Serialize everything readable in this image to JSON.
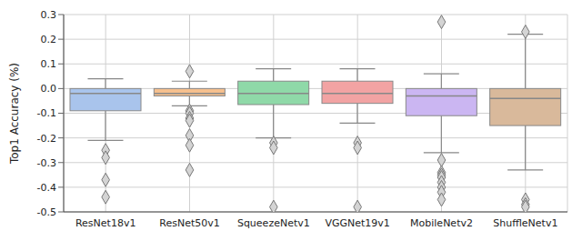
{
  "chart_data": {
    "type": "box",
    "y_label": "Top1 Accuracy (%)",
    "categories": [
      "ResNet18v1",
      "ResNet50v1",
      "SqueezeNetv1",
      "VGGNet19v1",
      "MobileNetv2",
      "ShuffleNetv1"
    ],
    "colors": [
      "#a9c4ec",
      "#f6c08e",
      "#8fd9a8",
      "#f2a3a3",
      "#cbb6f2",
      "#d9b99b"
    ],
    "whisker_low": [
      -0.21,
      -0.07,
      -0.2,
      -0.14,
      -0.26,
      -0.33
    ],
    "q1": [
      -0.09,
      -0.03,
      -0.065,
      -0.06,
      -0.11,
      -0.15
    ],
    "median": [
      -0.02,
      -0.02,
      -0.02,
      -0.02,
      -0.03,
      -0.04
    ],
    "q3": [
      0.0,
      0.0,
      0.03,
      0.03,
      0.0,
      0.0
    ],
    "whisker_high": [
      0.04,
      0.03,
      0.08,
      0.08,
      0.06,
      0.22
    ],
    "outliers": [
      [
        -0.25,
        -0.28,
        -0.37,
        -0.44
      ],
      [
        0.07,
        -0.09,
        -0.1,
        -0.12,
        -0.13,
        -0.19,
        -0.23,
        -0.33
      ],
      [
        -0.22,
        -0.24,
        -0.48
      ],
      [
        -0.22,
        -0.24,
        -0.48
      ],
      [
        0.27,
        -0.29,
        -0.34,
        -0.35,
        -0.36,
        -0.38,
        -0.4,
        -0.42,
        -0.45
      ],
      [
        0.23,
        -0.45,
        -0.47,
        -0.48
      ]
    ],
    "ylim": [
      -0.5,
      0.3
    ],
    "yticks": [
      -0.5,
      -0.4,
      -0.3,
      -0.2,
      -0.1,
      {
        "value": 0,
        "label": "0.0"
      },
      0.1,
      0.2,
      0.3
    ],
    "grid": true
  }
}
